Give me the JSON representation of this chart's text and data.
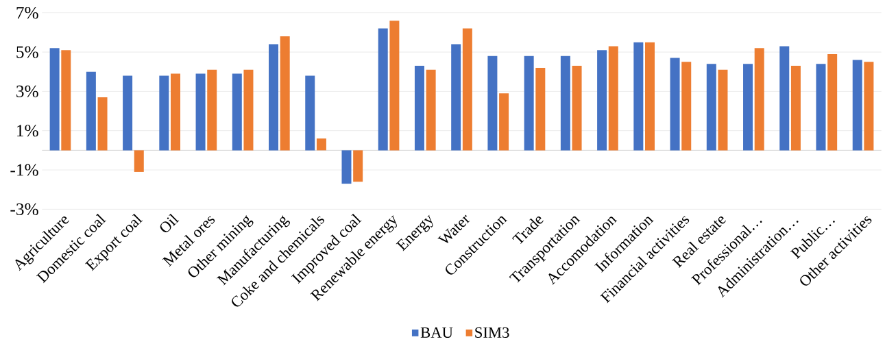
{
  "chart_data": {
    "type": "bar",
    "categories": [
      "Agriculture",
      "Domestic coal",
      "Export coal",
      "Oil",
      "Metal ores",
      "Other mining",
      "Manufacturing",
      "Coke and chemicals",
      "Improved coal",
      "Renewable energy",
      "Energy",
      "Water",
      "Construction",
      "Trade",
      "Transportation",
      "Accomodation",
      "Information",
      "Financial activities",
      "Real estate",
      "Professional…",
      "Administration…",
      "Public…",
      "Other activities"
    ],
    "series": [
      {
        "name": "BAU",
        "color": "#4472c4",
        "values": [
          5.2,
          4.0,
          3.8,
          3.8,
          3.9,
          3.9,
          5.4,
          3.8,
          -1.7,
          6.2,
          4.3,
          5.4,
          4.8,
          4.8,
          4.8,
          5.1,
          5.5,
          4.7,
          4.4,
          4.4,
          5.3,
          4.4,
          4.6
        ]
      },
      {
        "name": "SIM3",
        "color": "#ed7d31",
        "values": [
          5.1,
          2.7,
          -1.1,
          3.9,
          4.1,
          4.1,
          5.8,
          0.6,
          -1.6,
          6.6,
          4.1,
          6.2,
          2.9,
          4.2,
          4.3,
          5.3,
          5.5,
          4.5,
          4.1,
          5.2,
          4.3,
          4.9,
          4.5
        ]
      }
    ],
    "ylim": [
      -3,
      7
    ],
    "yticks": [
      {
        "value": -3,
        "label": "-3%"
      },
      {
        "value": -1,
        "label": "-1%"
      },
      {
        "value": 1,
        "label": "1%"
      },
      {
        "value": 3,
        "label": "3%"
      },
      {
        "value": 5,
        "label": "5%"
      },
      {
        "value": 7,
        "label": "7%"
      }
    ],
    "grid": "y",
    "legend": "bottom"
  }
}
